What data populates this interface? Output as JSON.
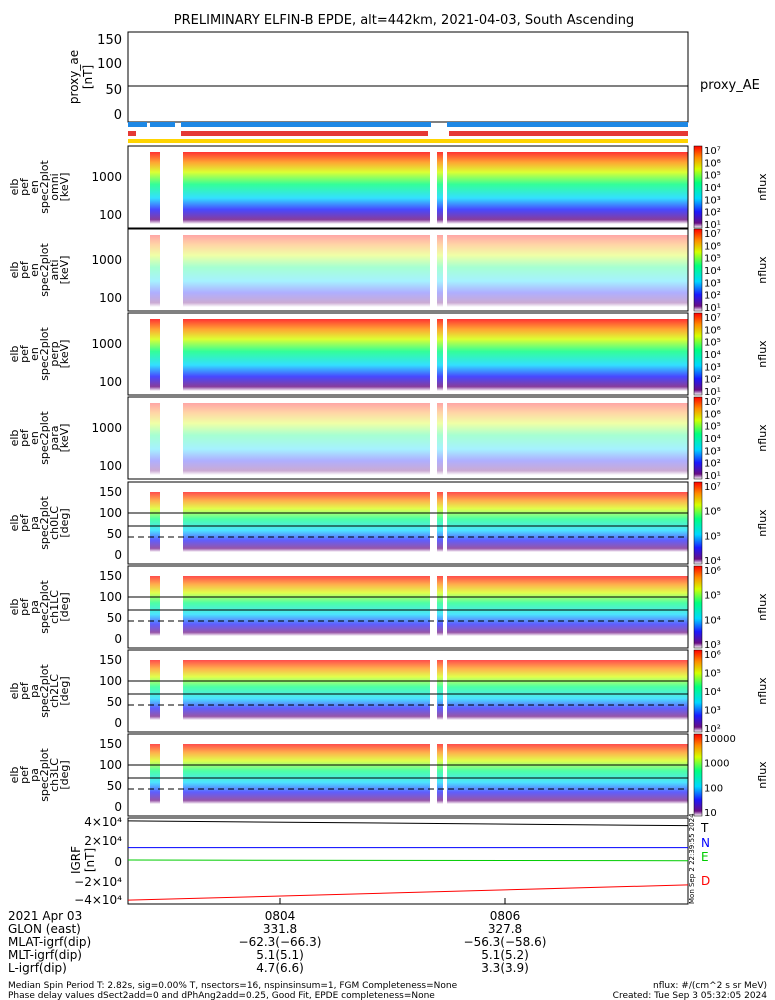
{
  "title": "PRELIMINARY ELFIN-B EPDE, alt=442km, 2021-04-03, South Ascending",
  "chart_data": [
    {
      "type": "line",
      "name": "proxy_ae-panel",
      "ylabel": [
        "proxy_ae",
        "[nT]"
      ],
      "yticks": [
        "150",
        "100",
        "50",
        "0"
      ],
      "ylim": [
        -20,
        160
      ],
      "legend": "proxy_AE",
      "series": [
        {
          "name": "proxy_AE",
          "values": [
            52,
            52
          ]
        }
      ]
    },
    {
      "type": "heatmap",
      "name": "spectrogram-panels",
      "panels": [
        {
          "ylabel": [
            "elb",
            "pef",
            "en",
            "spec2plot",
            "omni",
            "[keV]"
          ],
          "yticks": [
            "1000",
            "100"
          ],
          "cbar_ticks": [
            "10⁷",
            "10⁶",
            "10⁵",
            "10⁴",
            "10³",
            "10²",
            "10¹"
          ],
          "cbar_label": "nflux"
        },
        {
          "ylabel": [
            "elb",
            "pef",
            "en",
            "spec2plot",
            "anti",
            "[keV]"
          ],
          "yticks": [
            "1000",
            "100"
          ],
          "cbar_ticks": [
            "10⁷",
            "10⁶",
            "10⁵",
            "10⁴",
            "10³",
            "10²",
            "10¹"
          ],
          "cbar_label": "nflux"
        },
        {
          "ylabel": [
            "elb",
            "pef",
            "en",
            "spec2plot",
            "perp",
            "[keV]"
          ],
          "yticks": [
            "1000",
            "100"
          ],
          "cbar_ticks": [
            "10⁷",
            "10⁶",
            "10⁵",
            "10⁴",
            "10³",
            "10²",
            "10¹"
          ],
          "cbar_label": "nflux"
        },
        {
          "ylabel": [
            "elb",
            "pef",
            "en",
            "spec2plot",
            "para",
            "[keV]"
          ],
          "yticks": [
            "1000",
            "100"
          ],
          "cbar_ticks": [
            "10⁷",
            "10⁶",
            "10⁵",
            "10⁴",
            "10³",
            "10²",
            "10¹"
          ],
          "cbar_label": "nflux"
        },
        {
          "ylabel": [
            "elb",
            "pef",
            "pa",
            "spec2plot",
            "ch0LC",
            "[deg]"
          ],
          "yticks": [
            "150",
            "100",
            "50",
            "0"
          ],
          "cbar_ticks": [
            "10⁷",
            "10⁶",
            "10⁵",
            "10⁴"
          ],
          "cbar_label": "nflux"
        },
        {
          "ylabel": [
            "elb",
            "pef",
            "pa",
            "spec2plot",
            "ch1LC",
            "[deg]"
          ],
          "yticks": [
            "150",
            "100",
            "50",
            "0"
          ],
          "cbar_ticks": [
            "10⁶",
            "10⁵",
            "10⁴",
            "10³"
          ],
          "cbar_label": "nflux"
        },
        {
          "ylabel": [
            "elb",
            "pef",
            "pa",
            "spec2plot",
            "ch2LC",
            "[deg]"
          ],
          "yticks": [
            "150",
            "100",
            "50",
            "0"
          ],
          "cbar_ticks": [
            "10⁶",
            "10⁵",
            "10⁴",
            "10³",
            "10²"
          ],
          "cbar_label": "nflux"
        },
        {
          "ylabel": [
            "elb",
            "pef",
            "pa",
            "spec2plot",
            "ch3LC",
            "[deg]"
          ],
          "yticks": [
            "150",
            "100",
            "50",
            "0"
          ],
          "cbar_ticks": [
            "10000",
            "1000",
            "100",
            "10"
          ],
          "cbar_label": "nflux"
        }
      ]
    },
    {
      "type": "line",
      "name": "igrf-panel",
      "ylabel": [
        "IGRF",
        "[nT]"
      ],
      "yticks": [
        "4×10⁴",
        "2×10⁴",
        "0",
        "−2×10⁴",
        "−4×10⁴"
      ],
      "ylim": [
        -45000,
        45000
      ],
      "x": [
        0,
        1
      ],
      "series": [
        {
          "name": "T",
          "color": "#000000",
          "values": [
            42000,
            37000
          ]
        },
        {
          "name": "N",
          "color": "#0000ff",
          "values": [
            14000,
            14000
          ]
        },
        {
          "name": "E",
          "color": "#00cc00",
          "values": [
            1000,
            300
          ]
        },
        {
          "name": "D",
          "color": "#ff0000",
          "values": [
            -41000,
            -25000
          ]
        }
      ]
    }
  ],
  "stamp": "Mon Sep  2 22:39:55 2024",
  "footer": {
    "rows": [
      {
        "label": "2021 Apr 03",
        "c1": "0804",
        "c2": "0806"
      },
      {
        "label": "GLON (east)",
        "c1": "331.8",
        "c2": "327.8"
      },
      {
        "label": "MLAT-igrf(dip)",
        "c1": "−62.3(−66.3)",
        "c2": "−56.3(−58.6)"
      },
      {
        "label": "MLT-igrf(dip)",
        "c1": "5.1(5.1)",
        "c2": "5.1(5.2)"
      },
      {
        "label": "L-igrf(dip)",
        "c1": "4.7(6.6)",
        "c2": "3.3(3.9)"
      }
    ],
    "note1": "Median Spin Period T: 2.82s, sig=0.00% T, nsectors=16, nspinsinsum=1, FGM Completeness=None",
    "note2": "Phase delay values dSect2add=0 and dPhAng2add=0.25, Good Fit, EPDE completeness=None",
    "units": "nflux: #/(cm^2 s sr MeV)",
    "created": "Created: Tue Sep  3 05:32:05 2024"
  }
}
